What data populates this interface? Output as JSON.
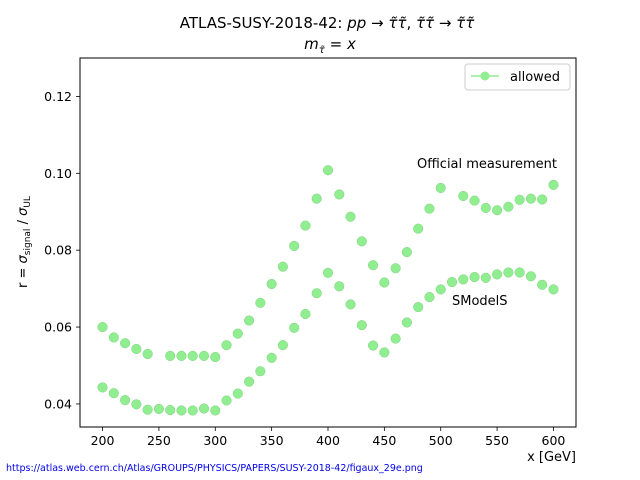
{
  "chart_data": {
    "type": "scatter",
    "title": "ATLAS-SUSY-2018-42: pp → τ̃τ̃, τ̃τ̃ → τ̃τ̃",
    "subtitle": "mτ̃ = x",
    "xlabel": "x [GeV]",
    "ylabel": "r = σsignal / σUL",
    "xlim": [
      180,
      620
    ],
    "ylim": [
      0.034,
      0.13
    ],
    "xticks": [
      200,
      250,
      300,
      350,
      400,
      450,
      500,
      550,
      600
    ],
    "yticks": [
      0.04,
      0.06,
      0.08,
      0.1,
      0.12
    ],
    "ytick_labels": [
      "0.04",
      "0.06",
      "0.08",
      "0.10",
      "0.12"
    ],
    "grid": false,
    "legend_position": "top-right",
    "marker_color": "#90ee90",
    "series": [
      {
        "name": "allowed",
        "points": [
          [
            200,
            0.06
          ],
          [
            210,
            0.0573
          ],
          [
            220,
            0.0558
          ],
          [
            230,
            0.0543
          ],
          [
            240,
            0.053
          ],
          [
            260,
            0.0525
          ],
          [
            270,
            0.0525
          ],
          [
            280,
            0.0525
          ],
          [
            290,
            0.0525
          ],
          [
            300,
            0.0522
          ],
          [
            310,
            0.0553
          ],
          [
            320,
            0.0583
          ],
          [
            330,
            0.0617
          ],
          [
            340,
            0.0663
          ],
          [
            350,
            0.0712
          ],
          [
            360,
            0.0757
          ],
          [
            370,
            0.0811
          ],
          [
            380,
            0.0864
          ],
          [
            390,
            0.0934
          ],
          [
            400,
            0.1008
          ],
          [
            410,
            0.0945
          ],
          [
            420,
            0.0887
          ],
          [
            430,
            0.0823
          ],
          [
            440,
            0.0761
          ],
          [
            450,
            0.0716
          ],
          [
            460,
            0.0753
          ],
          [
            470,
            0.0795
          ],
          [
            480,
            0.0856
          ],
          [
            490,
            0.0908
          ],
          [
            500,
            0.0962
          ],
          [
            520,
            0.0941
          ],
          [
            530,
            0.0929
          ],
          [
            540,
            0.091
          ],
          [
            550,
            0.0904
          ],
          [
            560,
            0.0913
          ],
          [
            570,
            0.0931
          ],
          [
            580,
            0.0934
          ],
          [
            590,
            0.0932
          ],
          [
            600,
            0.097
          ],
          [
            200,
            0.0443
          ],
          [
            210,
            0.0428
          ],
          [
            220,
            0.041
          ],
          [
            230,
            0.0399
          ],
          [
            240,
            0.0385
          ],
          [
            250,
            0.0387
          ],
          [
            260,
            0.0384
          ],
          [
            270,
            0.0383
          ],
          [
            280,
            0.0383
          ],
          [
            290,
            0.0388
          ],
          [
            300,
            0.0383
          ],
          [
            310,
            0.0409
          ],
          [
            320,
            0.0427
          ],
          [
            330,
            0.0458
          ],
          [
            340,
            0.0485
          ],
          [
            350,
            0.052
          ],
          [
            360,
            0.0553
          ],
          [
            370,
            0.0598
          ],
          [
            380,
            0.0634
          ],
          [
            390,
            0.0688
          ],
          [
            400,
            0.0741
          ],
          [
            410,
            0.0706
          ],
          [
            420,
            0.0659
          ],
          [
            430,
            0.0605
          ],
          [
            440,
            0.0552
          ],
          [
            450,
            0.0534
          ],
          [
            460,
            0.057
          ],
          [
            470,
            0.0612
          ],
          [
            480,
            0.0652
          ],
          [
            490,
            0.0678
          ],
          [
            500,
            0.0698
          ],
          [
            510,
            0.0717
          ],
          [
            520,
            0.0724
          ],
          [
            530,
            0.073
          ],
          [
            540,
            0.0728
          ],
          [
            550,
            0.0737
          ],
          [
            560,
            0.0742
          ],
          [
            570,
            0.0742
          ],
          [
            580,
            0.0732
          ],
          [
            590,
            0.071
          ],
          [
            600,
            0.0698
          ]
        ]
      }
    ],
    "annotations": [
      {
        "text": "Official measurement",
        "x": 480,
        "y": 0.1015
      },
      {
        "text": "SModelS",
        "x": 511,
        "y": 0.0657
      }
    ]
  },
  "footer": {
    "source_url": "https://atlas.web.cern.ch/Atlas/GROUPS/PHYSICS/PAPERS/SUSY-2018-42/figaux_29e.png"
  }
}
